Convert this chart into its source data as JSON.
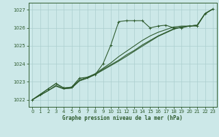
{
  "title": "Graphe pression niveau de la mer (hPa)",
  "background_color": "#cce8e8",
  "grid_color": "#aacece",
  "line_color": "#2d5a2d",
  "x_min": -0.5,
  "x_max": 23.5,
  "y_min": 1021.6,
  "y_max": 1027.4,
  "yticks": [
    1022,
    1023,
    1024,
    1025,
    1026,
    1027
  ],
  "xticks": [
    0,
    1,
    2,
    3,
    4,
    5,
    6,
    7,
    8,
    9,
    10,
    11,
    12,
    13,
    14,
    15,
    16,
    17,
    18,
    19,
    20,
    21,
    22,
    23
  ],
  "xtick_labels": [
    "0",
    "1",
    "2",
    "3",
    "4",
    "5",
    "6",
    "7",
    "8",
    "9",
    "10",
    "11",
    "12",
    "13",
    "14",
    "15",
    "16",
    "17",
    "18",
    "19",
    "20",
    "21",
    "22",
    "23"
  ],
  "series_main": [
    1022.0,
    1022.3,
    1022.6,
    1022.9,
    1022.65,
    1022.7,
    1023.2,
    1023.25,
    1023.4,
    1024.0,
    1025.05,
    1026.35,
    1026.4,
    1026.4,
    1026.4,
    1026.0,
    1026.1,
    1026.15,
    1026.0,
    1026.0,
    1026.1,
    1026.1,
    1026.8,
    1027.05
  ],
  "series_trend1": [
    1022.0,
    1022.3,
    1022.6,
    1022.9,
    1022.65,
    1022.7,
    1023.1,
    1023.25,
    1023.45,
    1023.75,
    1024.05,
    1024.4,
    1024.7,
    1025.0,
    1025.3,
    1025.55,
    1025.75,
    1025.9,
    1026.05,
    1026.1,
    1026.1,
    1026.15,
    1026.8,
    1027.05
  ],
  "series_trend2": [
    1022.0,
    1022.25,
    1022.5,
    1022.8,
    1022.6,
    1022.65,
    1023.05,
    1023.2,
    1023.4,
    1023.7,
    1023.95,
    1024.2,
    1024.5,
    1024.75,
    1025.05,
    1025.3,
    1025.55,
    1025.75,
    1025.95,
    1026.05,
    1026.1,
    1026.15,
    1026.8,
    1027.05
  ],
  "series_smooth": [
    1022.0,
    1022.25,
    1022.5,
    1022.75,
    1022.6,
    1022.65,
    1023.05,
    1023.2,
    1023.4,
    1023.65,
    1023.9,
    1024.15,
    1024.42,
    1024.7,
    1024.98,
    1025.25,
    1025.52,
    1025.72,
    1025.92,
    1026.05,
    1026.1,
    1026.15,
    1026.78,
    1027.05
  ]
}
